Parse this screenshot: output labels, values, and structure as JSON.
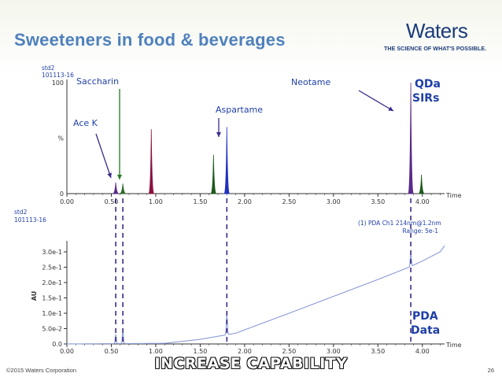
{
  "slide": {
    "title": "Sweeteners in food & beverages",
    "logo_word": "Waters",
    "logo_tagline": "THE SCIENCE OF WHAT'S POSSIBLE.",
    "footer_left": "©2015 Waters Corporation",
    "page_number": "26",
    "banner": "INCREASE CAPABILITY"
  },
  "annotations": {
    "ace_k": "Ace K",
    "saccharin": "Saccharin",
    "aspartame": "Aspartame",
    "neotame": "Neotame",
    "qda_line1": "QDa",
    "qda_line2": "SIRs",
    "pda_line1": "PDA",
    "pda_line2": "Data"
  },
  "colors": {
    "accent_blue": "#1f3fa8",
    "green": "#1f7a1f",
    "title_blue": "#4f81bd",
    "trace_blue": "#2030c0",
    "trace_maroon": "#8a1040",
    "trace_green": "#1a5a1a",
    "trace_purple": "#5a2a8a",
    "pda_line": "#8a9ad8"
  },
  "chart_data": [
    {
      "type": "line",
      "name": "QDa SIR chromatogram",
      "header": [
        "std2",
        "101113-16"
      ],
      "xlabel": "Time",
      "xlim": [
        0.0,
        4.25
      ],
      "ylim": [
        0,
        100
      ],
      "x_ticks": [
        "0.00",
        "0.50",
        "1.00",
        "1.50",
        "2.00",
        "2.50",
        "3.00",
        "3.50",
        "4.00"
      ],
      "y_ticks": [
        "0",
        "%",
        "100"
      ],
      "peaks": [
        {
          "rt": 0.55,
          "height": 10,
          "color": "#5a2a8a"
        },
        {
          "rt": 0.63,
          "height": 9,
          "color": "#2a6a2a"
        },
        {
          "rt": 0.95,
          "height": 58,
          "color": "#8a1040"
        },
        {
          "rt": 1.65,
          "height": 35,
          "color": "#1a5a1a"
        },
        {
          "rt": 1.8,
          "height": 60,
          "color": "#2030c0"
        },
        {
          "rt": 3.87,
          "height": 100,
          "color": "#5a2a8a"
        },
        {
          "rt": 3.99,
          "height": 17,
          "color": "#1a5a1a"
        }
      ]
    },
    {
      "type": "line",
      "name": "PDA chromatogram",
      "header": [
        "std2",
        "101113-16"
      ],
      "channel": "(1) PDA Ch1 214nm@1.2nm",
      "range": "Range: 5e-1",
      "xlabel": "Time",
      "ylabel": "AU",
      "xlim": [
        0.0,
        4.25
      ],
      "ylim": [
        0,
        0.34
      ],
      "x_ticks": [
        "0.00",
        "0.50",
        "1.00",
        "1.50",
        "2.00",
        "2.50",
        "3.00",
        "3.50",
        "4.00"
      ],
      "y_ticks": [
        "0.0",
        "5.0e-2",
        "1.0e-1",
        "1.5e-1",
        "2.0e-1",
        "2.5e-1",
        "3.0e-1"
      ],
      "baseline": [
        [
          0.0,
          0.0
        ],
        [
          1.1,
          0.002
        ],
        [
          1.5,
          0.015
        ],
        [
          1.9,
          0.035
        ],
        [
          2.5,
          0.1
        ],
        [
          3.0,
          0.155
        ],
        [
          3.5,
          0.21
        ],
        [
          3.85,
          0.25
        ],
        [
          4.0,
          0.27
        ],
        [
          4.1,
          0.285
        ],
        [
          4.2,
          0.3
        ],
        [
          4.25,
          0.32
        ]
      ],
      "peaks": [
        {
          "rt": 0.55,
          "height": 0.03
        },
        {
          "rt": 0.63,
          "height": 0.04
        },
        {
          "rt": 1.8,
          "height": 0.065
        },
        {
          "rt": 3.87,
          "height": 0.045
        }
      ]
    }
  ]
}
